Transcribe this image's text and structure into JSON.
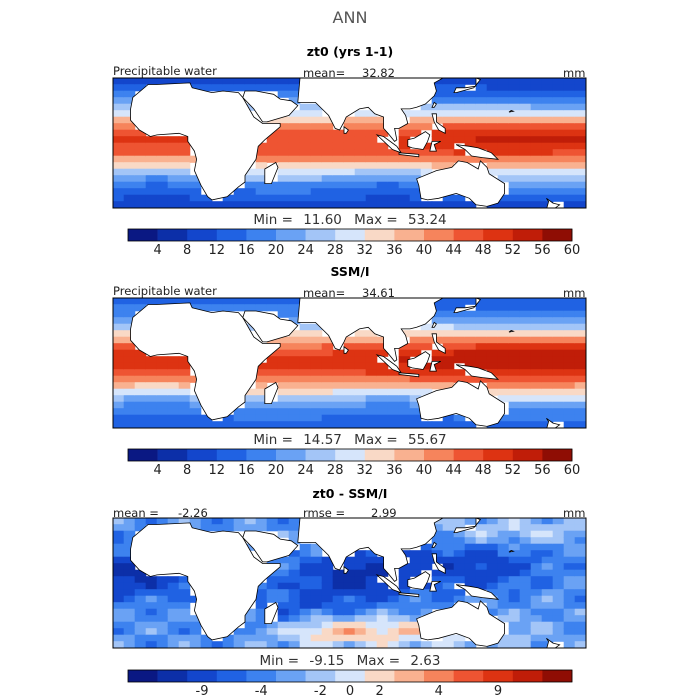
{
  "figure": {
    "title": "ANN"
  },
  "colors": {
    "land": "#ffffff",
    "coast": "#000000",
    "frame": "#000000"
  },
  "chart_data": [
    {
      "type": "heatmap",
      "title": "zt0 (yrs 1-1)",
      "variable_label": "Precipitable water",
      "mean_label": "mean=",
      "mean_value": "32.82",
      "units": "mm",
      "min_label": "Min =",
      "min_value": "11.60",
      "max_label": "Max =",
      "max_value": "53.24",
      "colorbar": {
        "bins": [
          "#0a1883",
          "#0c2fa8",
          "#1346cc",
          "#2062e3",
          "#3d82ef",
          "#6aa2f4",
          "#a3c5f7",
          "#d6e5fb",
          "#f9d9c6",
          "#f9b190",
          "#f6845c",
          "#ee5432",
          "#dd3312",
          "#c01d08",
          "#8f0d04"
        ],
        "ticks": [
          "4",
          "8",
          "12",
          "16",
          "20",
          "24",
          "28",
          "32",
          "36",
          "40",
          "44",
          "48",
          "52",
          "56",
          "60"
        ]
      },
      "field": {
        "kind": "pw",
        "equator_peak_lon": 150,
        "peak_value": 53,
        "min_value": 12,
        "itcz_offset_deg": 5
      }
    },
    {
      "type": "heatmap",
      "title": "SSM/I",
      "variable_label": "Precipitable water",
      "mean_label": "mean=",
      "mean_value": "34.61",
      "units": "mm",
      "min_label": "Min =",
      "min_value": "14.57",
      "max_label": "Max =",
      "max_value": "55.67",
      "colorbar": {
        "bins": [
          "#0a1883",
          "#0c2fa8",
          "#1346cc",
          "#2062e3",
          "#3d82ef",
          "#6aa2f4",
          "#a3c5f7",
          "#d6e5fb",
          "#f9d9c6",
          "#f9b190",
          "#f6845c",
          "#ee5432",
          "#dd3312",
          "#c01d08",
          "#8f0d04"
        ],
        "ticks": [
          "4",
          "8",
          "12",
          "16",
          "20",
          "24",
          "28",
          "32",
          "36",
          "40",
          "44",
          "48",
          "52",
          "56",
          "60"
        ]
      },
      "field": {
        "kind": "pw",
        "equator_peak_lon": 150,
        "peak_value": 56,
        "min_value": 15,
        "itcz_offset_deg": 6
      }
    },
    {
      "type": "heatmap",
      "title": "zt0 - SSM/I",
      "variable_label": "mean =",
      "mean_value": "-2.26",
      "rmse_label": "rmse =",
      "rmse_value": "2.99",
      "units": "mm",
      "min_label": "Min =",
      "min_value": "-9.15",
      "max_label": "Max =",
      "max_value": "2.63",
      "colorbar": {
        "bins": [
          "#0a1883",
          "#0c2fa8",
          "#1346cc",
          "#2062e3",
          "#3d82ef",
          "#6aa2f4",
          "#a3c5f7",
          "#d6e5fb",
          "#f9d9c6",
          "#f9b190",
          "#f6845c",
          "#ee5432",
          "#dd3312",
          "#c01d08",
          "#8f0d04"
        ],
        "ticks": [
          "-9",
          "-4",
          "-2",
          "0",
          "2",
          "4",
          "9"
        ]
      },
      "field": {
        "kind": "diff",
        "min_value": -9,
        "max_value": 2.6
      }
    }
  ]
}
